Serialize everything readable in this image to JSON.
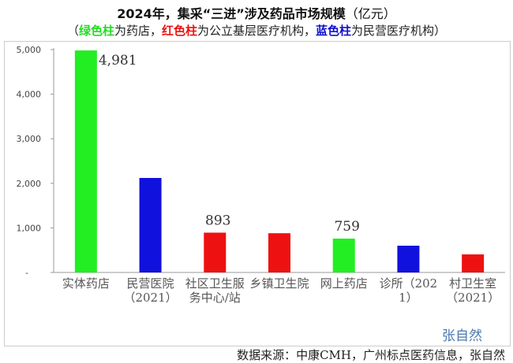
{
  "title": {
    "main": "2024年，集采“三进”涉及药品市场规模",
    "unit": "（亿元）"
  },
  "subtitle": {
    "open": "（",
    "green_label": "绿色柱",
    "green_text": "为药店，",
    "red_label": "红色柱",
    "red_text": "为公立基层医疗机构，",
    "blue_label": "蓝色柱",
    "blue_text": "为民营医疗机构）"
  },
  "colors": {
    "green": "#22ee22",
    "red": "#ee1111",
    "blue": "#1111dd"
  },
  "watermark": "张自然",
  "source": "数据来源：中康CMH，广州标点医药信息，张自然",
  "chart_data": {
    "type": "bar",
    "categories": [
      "实体药店",
      "民营医院（2021）",
      "社区卫生服务中心/站",
      "乡镇卫生院",
      "网上药店",
      "诊所（2021）",
      "村卫生室（2021）"
    ],
    "values": [
      4981,
      2120,
      893,
      880,
      759,
      600,
      405
    ],
    "bar_colors": [
      "green",
      "blue",
      "red",
      "red",
      "green",
      "blue",
      "red"
    ],
    "data_labels": {
      "0": "4,981",
      "2": "893",
      "4": "759"
    },
    "yticks": [
      "-",
      "1,000",
      "2,000",
      "3,000",
      "4,000",
      "5,000"
    ],
    "ylim": [
      0,
      5000
    ],
    "grid": false
  }
}
